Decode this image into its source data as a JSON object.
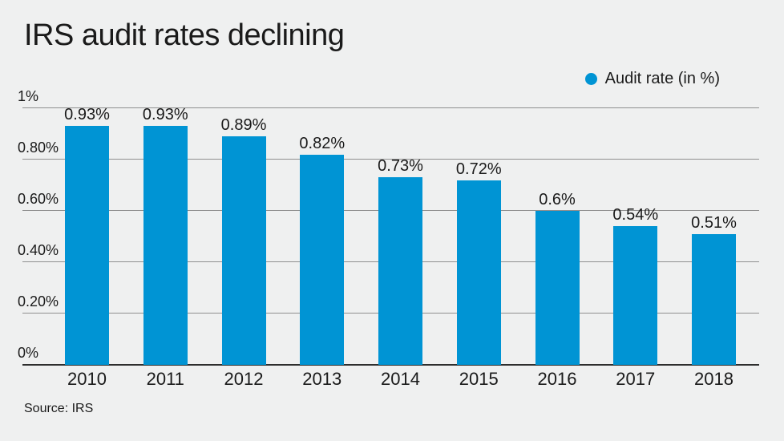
{
  "title": "IRS audit rates declining",
  "legend": {
    "label": "Audit rate (in %)"
  },
  "source": "Source: IRS",
  "colors": {
    "bar": "#0094d4",
    "background": "#eff0f0",
    "gridline": "#8f8f8f",
    "axis": "#2e2e2e",
    "text": "#1a1a1a"
  },
  "chart_data": {
    "type": "bar",
    "title": "IRS audit rates declining",
    "categories": [
      "2010",
      "2011",
      "2012",
      "2013",
      "2014",
      "2015",
      "2016",
      "2017",
      "2018"
    ],
    "values": [
      0.93,
      0.93,
      0.89,
      0.82,
      0.73,
      0.72,
      0.6,
      0.54,
      0.51
    ],
    "value_labels": [
      "0.93%",
      "0.93%",
      "0.89%",
      "0.82%",
      "0.73%",
      "0.72%",
      "0.6%",
      "0.54%",
      "0.51%"
    ],
    "series_name": "Audit rate (in %)",
    "xlabel": "",
    "ylabel": "Audit rate (in %)",
    "ylim": [
      0,
      1
    ],
    "yticks": [
      {
        "value": 1,
        "label": "1%"
      },
      {
        "value": 0.8,
        "label": "0.80%"
      },
      {
        "value": 0.6,
        "label": "0.60%"
      },
      {
        "value": 0.4,
        "label": "0.40%"
      },
      {
        "value": 0.2,
        "label": "0.20%"
      },
      {
        "value": 0,
        "label": "0%"
      }
    ],
    "grid": true,
    "legend_position": "top-right",
    "source": "Source: IRS"
  }
}
